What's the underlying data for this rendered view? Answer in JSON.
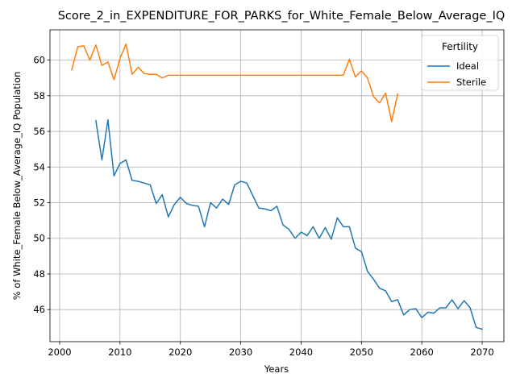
{
  "chart_data": {
    "type": "line",
    "title": "Score_2_in_EXPENDITURE_FOR_PARKS_for_White_Female_Below_Average_IQ",
    "xlabel": "Years",
    "ylabel": "% of White_Female Below_Average_IQ Population",
    "xlim": [
      1998.4,
      2073.6
    ],
    "ylim": [
      44.2,
      61.7
    ],
    "xticks": [
      2000,
      2010,
      2020,
      2030,
      2040,
      2050,
      2060,
      2070
    ],
    "yticks": [
      46,
      48,
      50,
      52,
      54,
      56,
      58,
      60
    ],
    "grid": true,
    "legend": {
      "title": "Fertility",
      "position": "top-right"
    },
    "series": [
      {
        "name": "Ideal",
        "color": "#1f77b4",
        "x": [
          2006,
          2007,
          2008,
          2009,
          2010,
          2011,
          2012,
          2013,
          2014,
          2015,
          2016,
          2017,
          2018,
          2019,
          2020,
          2021,
          2022,
          2023,
          2024,
          2025,
          2026,
          2027,
          2028,
          2029,
          2030,
          2031,
          2032,
          2033,
          2034,
          2035,
          2036,
          2037,
          2038,
          2039,
          2040,
          2041,
          2042,
          2043,
          2044,
          2045,
          2046,
          2047,
          2048,
          2049,
          2050,
          2051,
          2052,
          2053,
          2054,
          2055,
          2056,
          2057,
          2058,
          2059,
          2060,
          2061,
          2062,
          2063,
          2064,
          2065,
          2066,
          2067,
          2068,
          2069,
          2070
        ],
        "y": [
          56.6,
          54.4,
          56.65,
          53.5,
          54.2,
          54.4,
          53.25,
          53.2,
          53.1,
          53.0,
          51.95,
          52.45,
          51.2,
          51.9,
          52.3,
          51.95,
          51.85,
          51.8,
          50.65,
          52.0,
          51.7,
          52.2,
          51.9,
          53.0,
          53.2,
          53.1,
          52.4,
          51.7,
          51.65,
          51.55,
          51.8,
          50.75,
          50.5,
          50.0,
          50.35,
          50.15,
          50.65,
          50.0,
          50.6,
          49.95,
          51.15,
          50.65,
          50.65,
          49.45,
          49.25,
          48.15,
          47.7,
          47.2,
          47.05,
          46.45,
          46.55,
          45.7,
          46.0,
          46.05,
          45.55,
          45.85,
          45.8,
          46.1,
          46.1,
          46.55,
          46.05,
          46.5,
          46.1,
          45.0,
          44.9
        ]
      },
      {
        "name": "Sterile",
        "color": "#ff7f0e",
        "x": [
          2002,
          2003,
          2004,
          2005,
          2006,
          2007,
          2008,
          2009,
          2010,
          2011,
          2012,
          2013,
          2014,
          2015,
          2016,
          2017,
          2018,
          2019,
          2020,
          2021,
          2022,
          2023,
          2024,
          2025,
          2026,
          2027,
          2028,
          2029,
          2030,
          2031,
          2032,
          2033,
          2034,
          2035,
          2036,
          2037,
          2038,
          2039,
          2040,
          2041,
          2042,
          2043,
          2044,
          2045,
          2046,
          2047,
          2048,
          2049,
          2050,
          2051,
          2052,
          2053,
          2054,
          2055,
          2056
        ],
        "y": [
          59.45,
          60.75,
          60.8,
          60.0,
          60.85,
          59.7,
          59.9,
          58.9,
          60.1,
          60.9,
          59.2,
          59.6,
          59.25,
          59.2,
          59.2,
          59.0,
          59.15,
          59.15,
          59.15,
          59.15,
          59.15,
          59.15,
          59.15,
          59.15,
          59.15,
          59.15,
          59.15,
          59.15,
          59.15,
          59.15,
          59.15,
          59.15,
          59.15,
          59.15,
          59.15,
          59.15,
          59.15,
          59.15,
          59.15,
          59.15,
          59.15,
          59.15,
          59.15,
          59.15,
          59.15,
          59.15,
          60.05,
          59.05,
          59.4,
          59.0,
          57.95,
          57.6,
          58.15,
          56.55,
          58.1
        ]
      }
    ]
  }
}
